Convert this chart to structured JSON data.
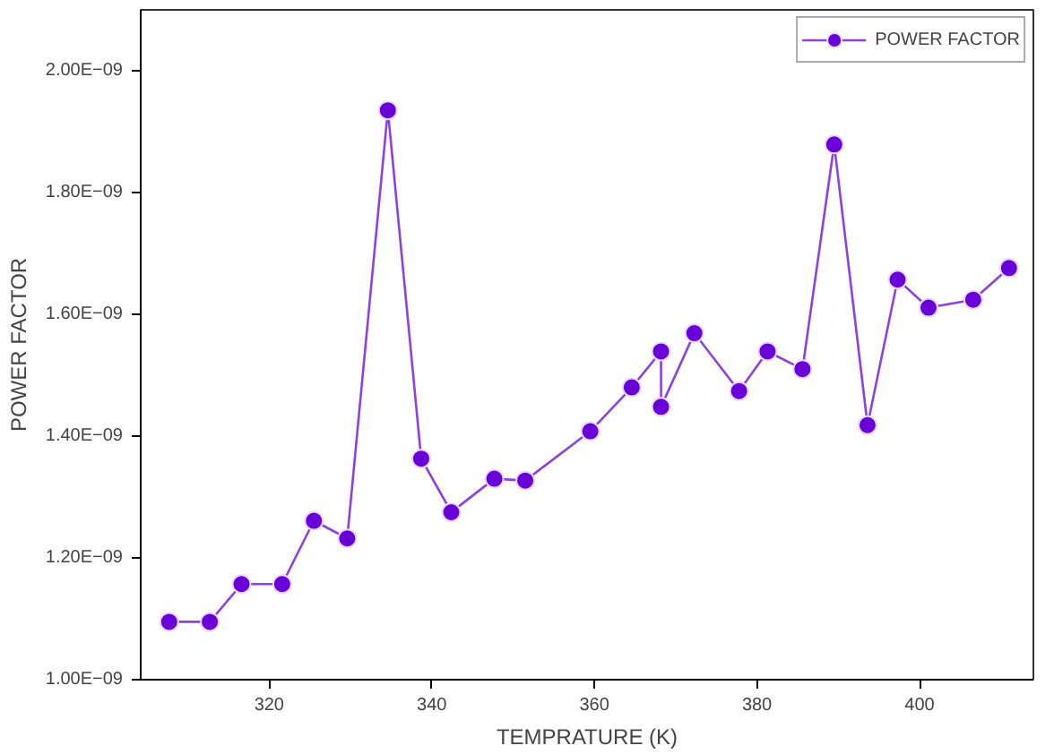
{
  "chart_data": {
    "type": "line",
    "xlabel": "TEMPRATURE (K)",
    "ylabel": "POWER FACTOR",
    "x": [
      307.7,
      312.7,
      316.6,
      321.6,
      325.5,
      329.6,
      334.6,
      338.7,
      342.4,
      347.7,
      351.5,
      359.5,
      364.6,
      368.2,
      368.2,
      372.3,
      377.8,
      381.3,
      385.6,
      389.5,
      393.6,
      397.3,
      401.1,
      406.6,
      411.0
    ],
    "series": [
      {
        "name": "POWER FACTOR",
        "color": "#6a00d8",
        "values": [
          1.095e-09,
          1.095e-09,
          1.157e-09,
          1.157e-09,
          1.261e-09,
          1.232e-09,
          1.935e-09,
          1.363e-09,
          1.275e-09,
          1.33e-09,
          1.327e-09,
          1.408e-09,
          1.48e-09,
          1.539e-09,
          1.448e-09,
          1.569e-09,
          1.474e-09,
          1.539e-09,
          1.51e-09,
          1.879e-09,
          1.418e-09,
          1.657e-09,
          1.611e-09,
          1.624e-09,
          1.676e-09
        ]
      }
    ],
    "xlim": [
      304.2,
      414
    ],
    "xticks": [
      320,
      340,
      360,
      380,
      400
    ],
    "ylim": [
      1e-09,
      2.1e-09
    ],
    "yticks": [
      {
        "value": 1e-09,
        "label": "1.00E−09"
      },
      {
        "value": 1.2e-09,
        "label": "1.20E−09"
      },
      {
        "value": 1.4e-09,
        "label": "1.40E−09"
      },
      {
        "value": 1.6e-09,
        "label": "1.60E−09"
      },
      {
        "value": 1.8e-09,
        "label": "1.80E−09"
      },
      {
        "value": 2e-09,
        "label": "2.00E−09"
      }
    ],
    "marker": "circle",
    "line_style": "solid",
    "grid": false,
    "legend": "top right"
  }
}
